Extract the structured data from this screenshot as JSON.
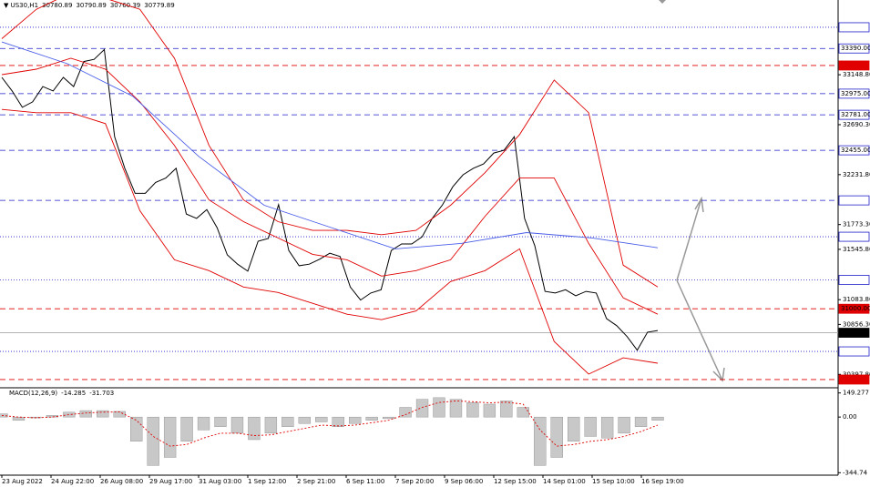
{
  "chart_data": [
    {
      "type": "line",
      "title": "US30,H1",
      "ohlc": [
        30780.89,
        30790.89,
        30760.39,
        30779.89
      ],
      "ylim": [
        30283,
        33835
      ],
      "yticks": [
        {
          "value": 33148.8,
          "label": "33148.80"
        },
        {
          "value": 32690.3,
          "label": "32690.30"
        },
        {
          "value": 32231.8,
          "label": "32231.80"
        },
        {
          "value": 31773.3,
          "label": "31773.30"
        },
        {
          "value": 31545.8,
          "label": "31545.80"
        },
        {
          "value": 31083.8,
          "label": "31083.80"
        },
        {
          "value": 30856.3,
          "label": "30856.30"
        },
        {
          "value": 30397.8,
          "label": "30397.80"
        }
      ],
      "series": [
        {
          "color": "#000000",
          "values": [
            33125,
            33000,
            32850,
            32900,
            33040,
            33000,
            33125,
            33040,
            33270,
            33290,
            33380,
            32580,
            32290,
            32060,
            32060,
            32160,
            32200,
            32290,
            31870,
            31830,
            31910,
            31745,
            31495,
            31410,
            31345,
            31620,
            31645,
            31955,
            31535,
            31395,
            31410,
            31455,
            31510,
            31480,
            31200,
            31080,
            31145,
            31175,
            31535,
            31595,
            31595,
            31660,
            31830,
            31955,
            32120,
            32230,
            32290,
            32330,
            32430,
            32455,
            32580,
            31830,
            31580,
            31160,
            31145,
            31175,
            31120,
            31160,
            31145,
            30910,
            30845,
            30745,
            30620,
            30785,
            30800
          ]
        },
        {
          "color": "#e00000",
          "values": [
            33480,
            33750,
            33900,
            33850,
            33750,
            33300,
            32500,
            32000,
            31800,
            31720,
            31720,
            31680,
            31720,
            31950,
            32250,
            32600,
            33100,
            32800,
            31400,
            31200
          ]
        },
        {
          "color": "#e00000",
          "values": [
            33150,
            33200,
            33300,
            33200,
            32900,
            32500,
            32000,
            31800,
            31650,
            31500,
            31450,
            31300,
            31350,
            31450,
            31850,
            32200,
            32200,
            31600,
            31100,
            30950
          ]
        },
        {
          "color": "#e00000",
          "values": [
            32830,
            32800,
            32800,
            32700,
            31900,
            31450,
            31350,
            31200,
            31150,
            31050,
            30950,
            30900,
            30980,
            31250,
            31350,
            31550,
            30700,
            30400,
            30550,
            30500
          ]
        },
        {
          "color": "#4a5ee8",
          "values": [
            33450,
            33250,
            32950,
            32400,
            31950,
            31750,
            31550,
            31600,
            31700,
            31650,
            31560
          ]
        }
      ],
      "levels": [
        {
          "value": 33584.59,
          "color": "#1f1fc8",
          "style": "dotted"
        },
        {
          "value": 33390,
          "label": "33390.00",
          "color": "#1f1fc8",
          "style": "dashed"
        },
        {
          "value": 33233.63,
          "color": "#e00000",
          "style": "dashed"
        },
        {
          "value": 32975,
          "label": "32975.00",
          "color": "#1f1fc8",
          "style": "dashed"
        },
        {
          "value": 32781,
          "label": "32781.00",
          "color": "#1f1fc8",
          "style": "dashed"
        },
        {
          "value": 32455,
          "label": "32455.00",
          "color": "#1f1fc8",
          "style": "dashed"
        },
        {
          "value": 31995.28,
          "color": "#1f1fc8",
          "style": "dashed"
        },
        {
          "value": 31661.46,
          "color": "#1f1fc8",
          "style": "dotted"
        },
        {
          "value": 31265.24,
          "color": "#1f1fc8",
          "style": "dotted"
        },
        {
          "value": 31000,
          "label": "31000.00",
          "color": "#e00000",
          "style": "dashed"
        },
        {
          "value": 30779.89,
          "color": "#000000",
          "style": "solid"
        },
        {
          "value": 30608.62,
          "color": "#1f1fc8",
          "style": "dotted"
        },
        {
          "value": 30350.18,
          "color": "#e00000",
          "style": "dashed"
        }
      ]
    },
    {
      "type": "bar",
      "title": "MACD(12,26,9)",
      "indicator_values": [
        -14.285,
        -31.703
      ],
      "ylim": [
        -360,
        170
      ],
      "yticks": [
        149.277,
        {
          "value": 0,
          "label": "0.00"
        },
        -344.74
      ],
      "xtick_labels": [
        "23 Aug 2022",
        "24 Aug 22:00",
        "26 Aug 08:00",
        "29 Aug 17:00",
        "31 Aug 03:00",
        "1 Sep 12:00",
        "2 Sep 21:00",
        "6 Sep 11:00",
        "7 Sep 20:00",
        "9 Sep 06:00",
        "12 Sep 15:00",
        "14 Sep 01:00",
        "15 Sep 10:00",
        "16 Sep 19:00"
      ],
      "values": [
        20,
        -20,
        -5,
        10,
        30,
        40,
        40,
        35,
        -150,
        -300,
        -250,
        -150,
        -80,
        -60,
        -100,
        -140,
        -100,
        -60,
        -40,
        -30,
        -60,
        -40,
        -20,
        -10,
        60,
        110,
        120,
        110,
        90,
        80,
        100,
        60,
        -300,
        -250,
        -150,
        -120,
        -130,
        -100,
        -60,
        -20
      ],
      "signal": [
        10,
        0,
        -5,
        0,
        15,
        25,
        30,
        32,
        -20,
        -120,
        -180,
        -170,
        -130,
        -100,
        -100,
        -115,
        -110,
        -90,
        -70,
        -50,
        -55,
        -50,
        -35,
        -20,
        15,
        60,
        90,
        100,
        95,
        88,
        92,
        80,
        -80,
        -180,
        -170,
        -150,
        -140,
        -120,
        -90,
        -50
      ]
    }
  ]
}
